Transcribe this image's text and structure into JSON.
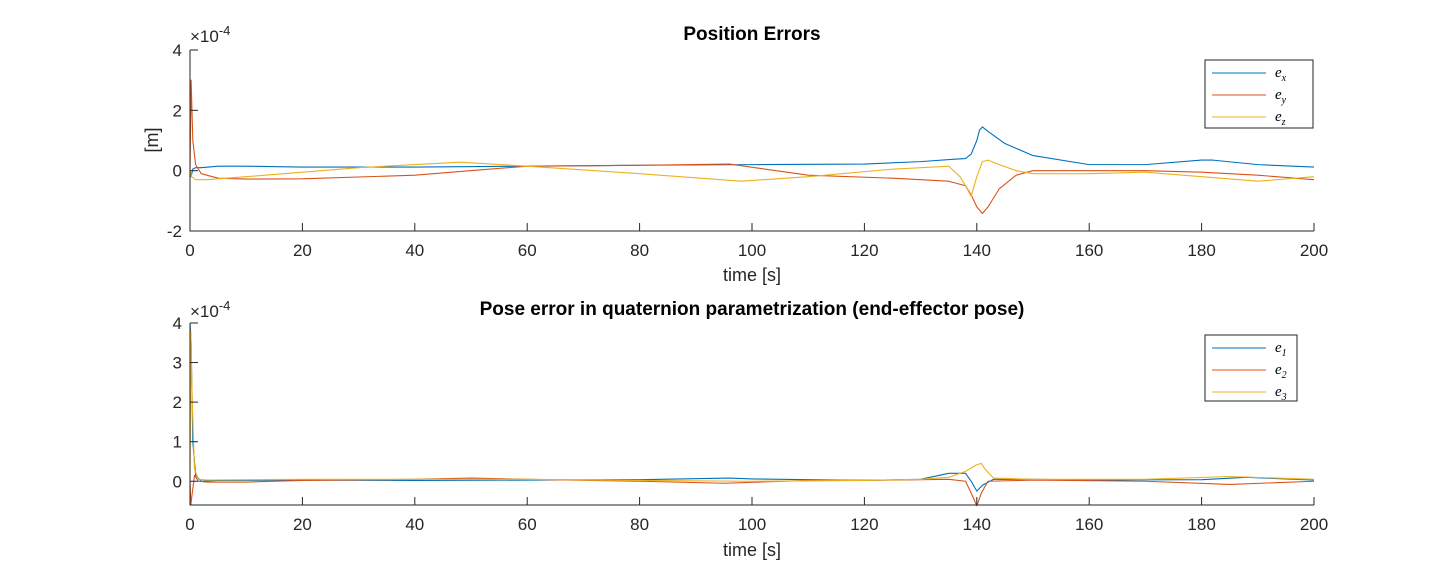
{
  "colors": {
    "s1": "#0072BD",
    "s2": "#D95319",
    "s3": "#EDB120",
    "axis": "#262626"
  },
  "chart_data": [
    {
      "type": "line",
      "title": "Position Errors",
      "xlabel": "time [s]",
      "ylabel": "[m]",
      "exponent": "×10",
      "exponent_power": "-4",
      "xlim": [
        0,
        200
      ],
      "ylim": [
        -2,
        4
      ],
      "xticks": [
        0,
        20,
        40,
        60,
        80,
        100,
        120,
        140,
        160,
        180,
        200
      ],
      "yticks": [
        -2,
        0,
        2,
        4
      ],
      "legend_position": "top-right",
      "grid": false,
      "series": [
        {
          "name": "e_x",
          "legend_main": "e",
          "legend_sub": "x",
          "color": "#0072BD",
          "x": [
            0,
            0.2,
            0.5,
            1,
            2,
            5,
            10,
            20,
            40,
            60,
            80,
            100,
            120,
            130,
            136,
            138,
            139,
            140,
            140.5,
            141,
            142,
            145,
            150,
            160,
            170,
            180,
            182,
            190,
            200
          ],
          "y": [
            0,
            -0.2,
            0.05,
            0.1,
            0.1,
            0.15,
            0.15,
            0.12,
            0.12,
            0.15,
            0.18,
            0.2,
            0.22,
            0.3,
            0.38,
            0.4,
            0.55,
            1.0,
            1.35,
            1.45,
            1.3,
            0.9,
            0.5,
            0.2,
            0.2,
            0.35,
            0.35,
            0.2,
            0.12
          ]
        },
        {
          "name": "e_y",
          "legend_main": "e",
          "legend_sub": "y",
          "color": "#D95319",
          "x": [
            0,
            0.2,
            0.5,
            1,
            2,
            5,
            10,
            20,
            40,
            60,
            80,
            96,
            110,
            125,
            135,
            138,
            139,
            140,
            141,
            142,
            144,
            147,
            150,
            160,
            170,
            180,
            190,
            200
          ],
          "y": [
            0,
            3.0,
            1.0,
            0.2,
            -0.1,
            -0.25,
            -0.28,
            -0.27,
            -0.15,
            0.15,
            0.18,
            0.22,
            -0.15,
            -0.25,
            -0.35,
            -0.5,
            -0.8,
            -1.2,
            -1.42,
            -1.2,
            -0.6,
            -0.15,
            0.0,
            0.0,
            0.0,
            -0.05,
            -0.15,
            -0.3
          ]
        },
        {
          "name": "e_z",
          "legend_main": "e",
          "legend_sub": "z",
          "color": "#EDB120",
          "x": [
            0,
            0.3,
            1,
            3,
            10,
            30,
            48,
            60,
            80,
            98,
            110,
            125,
            135,
            137,
            138,
            139,
            140,
            141,
            142,
            144,
            147,
            150,
            160,
            170,
            180,
            190,
            200
          ],
          "y": [
            0,
            -0.2,
            -0.3,
            -0.3,
            -0.2,
            0.1,
            0.28,
            0.15,
            -0.1,
            -0.35,
            -0.2,
            0.05,
            0.15,
            -0.2,
            -0.5,
            -0.85,
            -0.2,
            0.3,
            0.35,
            0.2,
            0.0,
            -0.1,
            -0.1,
            -0.05,
            -0.2,
            -0.35,
            -0.2
          ]
        }
      ]
    },
    {
      "type": "line",
      "title": "Pose error in quaternion parametrization (end-effector pose)",
      "xlabel": "time [s]",
      "ylabel": "",
      "exponent": "×10",
      "exponent_power": "-4",
      "xlim": [
        0,
        200
      ],
      "ylim": [
        -0.6,
        4
      ],
      "xticks": [
        0,
        20,
        40,
        60,
        80,
        100,
        120,
        140,
        160,
        180,
        200
      ],
      "yticks": [
        0,
        1,
        2,
        3,
        4
      ],
      "legend_position": "top-right",
      "grid": false,
      "series": [
        {
          "name": "e_1",
          "legend_main": "e",
          "legend_sub": "1",
          "color": "#0072BD",
          "x": [
            0,
            0.2,
            0.5,
            1,
            2,
            5,
            20,
            40,
            60,
            80,
            96,
            100,
            120,
            130,
            135,
            138,
            139,
            140,
            141,
            143,
            150,
            160,
            180,
            188,
            200
          ],
          "y": [
            4.0,
            3.5,
            1.0,
            0.15,
            0.0,
            0.02,
            0.03,
            0.02,
            0.03,
            0.04,
            0.08,
            0.06,
            0.02,
            0.05,
            0.2,
            0.2,
            0.0,
            -0.25,
            -0.1,
            0.05,
            0.05,
            0.03,
            0.04,
            0.1,
            0.03
          ]
        },
        {
          "name": "e_2",
          "legend_main": "e",
          "legend_sub": "2",
          "color": "#D95319",
          "x": [
            0,
            0.15,
            0.4,
            0.8,
            1.5,
            3,
            10,
            20,
            40,
            50,
            60,
            80,
            95,
            110,
            125,
            135,
            138,
            139,
            140,
            140.8,
            142,
            150,
            170,
            185,
            200
          ],
          "y": [
            0,
            -0.6,
            -0.3,
            0.15,
            0.0,
            -0.02,
            -0.02,
            0.02,
            0.05,
            0.08,
            0.05,
            0.0,
            -0.05,
            0.02,
            0.03,
            0.05,
            0.0,
            -0.3,
            -0.62,
            -0.3,
            0.0,
            0.03,
            0.0,
            -0.08,
            0.0
          ]
        },
        {
          "name": "e_3",
          "legend_main": "e",
          "legend_sub": "3",
          "color": "#EDB120",
          "x": [
            0,
            0.15,
            0.4,
            0.8,
            1.5,
            3,
            20,
            40,
            60,
            80,
            100,
            120,
            130,
            135,
            138,
            140,
            140.8,
            141.5,
            143,
            150,
            170,
            185,
            200
          ],
          "y": [
            0,
            3.8,
            2.0,
            0.3,
            0.05,
            0.03,
            0.05,
            0.05,
            0.05,
            0.02,
            0.0,
            0.02,
            0.05,
            0.1,
            0.25,
            0.42,
            0.45,
            0.3,
            0.08,
            0.05,
            0.05,
            0.12,
            0.05
          ]
        }
      ]
    }
  ]
}
